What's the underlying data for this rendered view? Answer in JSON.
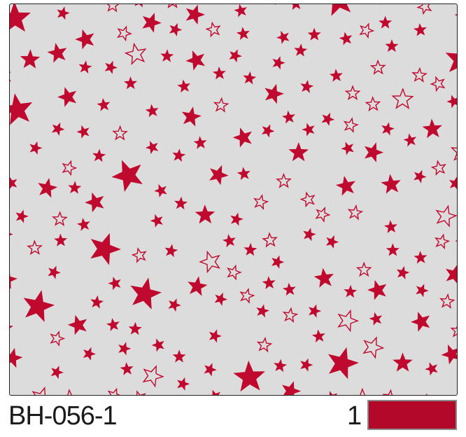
{
  "product_code": "BH-056-1",
  "colorway": {
    "number": "1",
    "color": "#b3082a"
  },
  "pattern": {
    "motif": "star-icon",
    "background": "#dcdcdc",
    "star_color": "#c0092e"
  }
}
